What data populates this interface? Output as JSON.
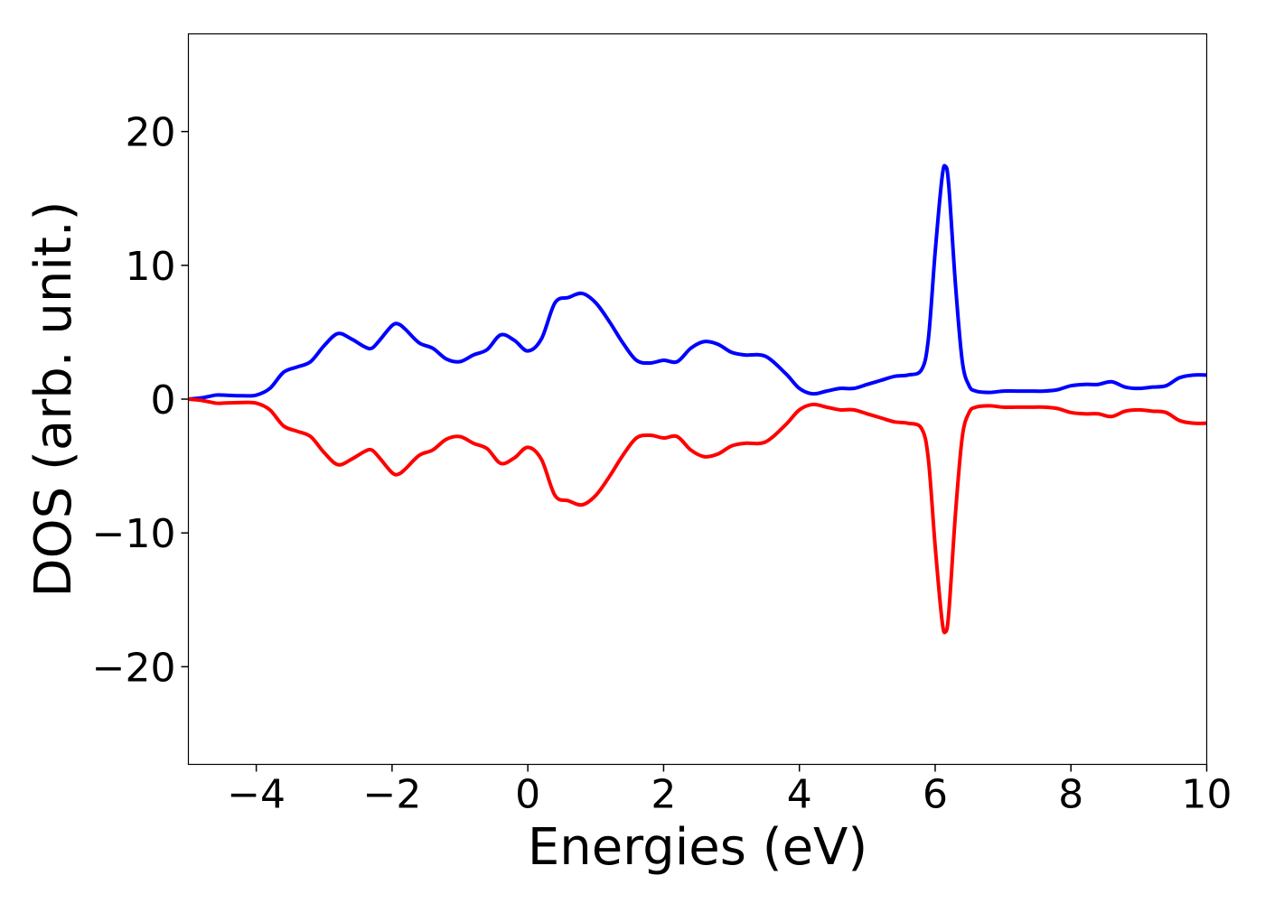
{
  "chart_data": {
    "type": "line",
    "xlabel": "Energies (eV)",
    "ylabel": "DOS (arb. unit.)",
    "xlim": [
      -5,
      10
    ],
    "ylim": [
      -27.3,
      27.3
    ],
    "xticks": [
      -4,
      -2,
      0,
      2,
      4,
      6,
      8,
      10
    ],
    "xtick_labels": [
      "−4",
      "−2",
      "0",
      "2",
      "4",
      "6",
      "8",
      "10"
    ],
    "yticks": [
      -20,
      -10,
      0,
      10,
      20
    ],
    "ytick_labels": [
      "−20",
      "−10",
      "0",
      "10",
      "20"
    ],
    "grid": false,
    "legend": "none",
    "series": [
      {
        "color": "#0000ff",
        "x": [
          -5,
          -4.8,
          -4.6,
          -4.5,
          -4.2,
          -4.0,
          -3.8,
          -3.6,
          -3.4,
          -3.2,
          -3.0,
          -2.8,
          -2.6,
          -2.4,
          -2.3,
          -2.2,
          -2.0,
          -1.9,
          -1.8,
          -1.6,
          -1.4,
          -1.2,
          -1.0,
          -0.8,
          -0.6,
          -0.4,
          -0.2,
          0.0,
          0.2,
          0.4,
          0.6,
          0.8,
          1.0,
          1.2,
          1.4,
          1.6,
          1.8,
          2.0,
          2.2,
          2.4,
          2.6,
          2.8,
          3.0,
          3.2,
          3.5,
          3.8,
          4.0,
          4.2,
          4.4,
          4.6,
          4.8,
          5.0,
          5.2,
          5.4,
          5.6,
          5.8,
          5.9,
          6.0,
          6.1,
          6.15,
          6.2,
          6.3,
          6.4,
          6.5,
          6.6,
          6.8,
          7.0,
          7.2,
          7.4,
          7.6,
          7.8,
          8.0,
          8.2,
          8.4,
          8.6,
          8.8,
          9.0,
          9.2,
          9.4,
          9.6,
          9.8,
          10.0
        ],
        "values": [
          0.0,
          0.1,
          0.3,
          0.3,
          0.25,
          0.3,
          0.8,
          2.0,
          2.4,
          2.8,
          4.0,
          4.9,
          4.5,
          3.9,
          3.8,
          4.3,
          5.5,
          5.6,
          5.2,
          4.2,
          3.8,
          3.0,
          2.8,
          3.3,
          3.7,
          4.8,
          4.4,
          3.6,
          4.5,
          7.2,
          7.6,
          7.9,
          7.2,
          5.8,
          4.2,
          2.9,
          2.7,
          2.9,
          2.8,
          3.8,
          4.3,
          4.1,
          3.5,
          3.3,
          3.2,
          1.9,
          0.8,
          0.4,
          0.6,
          0.8,
          0.8,
          1.1,
          1.4,
          1.7,
          1.8,
          2.2,
          4.5,
          11.0,
          16.5,
          17.4,
          16.0,
          8.5,
          2.8,
          1.0,
          0.6,
          0.5,
          0.6,
          0.6,
          0.6,
          0.6,
          0.7,
          1.0,
          1.1,
          1.1,
          1.3,
          0.9,
          0.8,
          0.9,
          1.0,
          1.6,
          1.8,
          1.8
        ]
      },
      {
        "color": "#ff0000",
        "x": [
          -5,
          -4.8,
          -4.6,
          -4.5,
          -4.2,
          -4.0,
          -3.8,
          -3.6,
          -3.4,
          -3.2,
          -3.0,
          -2.8,
          -2.6,
          -2.4,
          -2.3,
          -2.2,
          -2.0,
          -1.9,
          -1.8,
          -1.6,
          -1.4,
          -1.2,
          -1.0,
          -0.8,
          -0.6,
          -0.4,
          -0.2,
          0.0,
          0.2,
          0.4,
          0.6,
          0.8,
          1.0,
          1.2,
          1.4,
          1.6,
          1.8,
          2.0,
          2.2,
          2.4,
          2.6,
          2.8,
          3.0,
          3.2,
          3.5,
          3.8,
          4.0,
          4.2,
          4.4,
          4.6,
          4.8,
          5.0,
          5.2,
          5.4,
          5.6,
          5.8,
          5.9,
          6.0,
          6.1,
          6.15,
          6.2,
          6.3,
          6.4,
          6.5,
          6.6,
          6.8,
          7.0,
          7.2,
          7.4,
          7.6,
          7.8,
          8.0,
          8.2,
          8.4,
          8.6,
          8.8,
          9.0,
          9.2,
          9.4,
          9.6,
          9.8,
          10.0
        ],
        "values": [
          0.0,
          -0.1,
          -0.3,
          -0.3,
          -0.25,
          -0.3,
          -0.8,
          -2.0,
          -2.4,
          -2.8,
          -4.0,
          -4.9,
          -4.5,
          -3.9,
          -3.8,
          -4.3,
          -5.5,
          -5.6,
          -5.2,
          -4.2,
          -3.8,
          -3.0,
          -2.8,
          -3.3,
          -3.7,
          -4.8,
          -4.4,
          -3.6,
          -4.5,
          -7.2,
          -7.6,
          -7.9,
          -7.2,
          -5.8,
          -4.2,
          -2.9,
          -2.7,
          -2.9,
          -2.8,
          -3.8,
          -4.3,
          -4.1,
          -3.5,
          -3.3,
          -3.2,
          -1.9,
          -0.8,
          -0.4,
          -0.6,
          -0.8,
          -0.8,
          -1.1,
          -1.4,
          -1.7,
          -1.8,
          -2.2,
          -4.5,
          -11.0,
          -16.5,
          -17.4,
          -16.0,
          -8.5,
          -2.8,
          -1.0,
          -0.6,
          -0.5,
          -0.6,
          -0.6,
          -0.6,
          -0.6,
          -0.7,
          -1.0,
          -1.1,
          -1.1,
          -1.3,
          -0.9,
          -0.8,
          -0.9,
          -1.0,
          -1.6,
          -1.8,
          -1.8
        ]
      }
    ]
  }
}
